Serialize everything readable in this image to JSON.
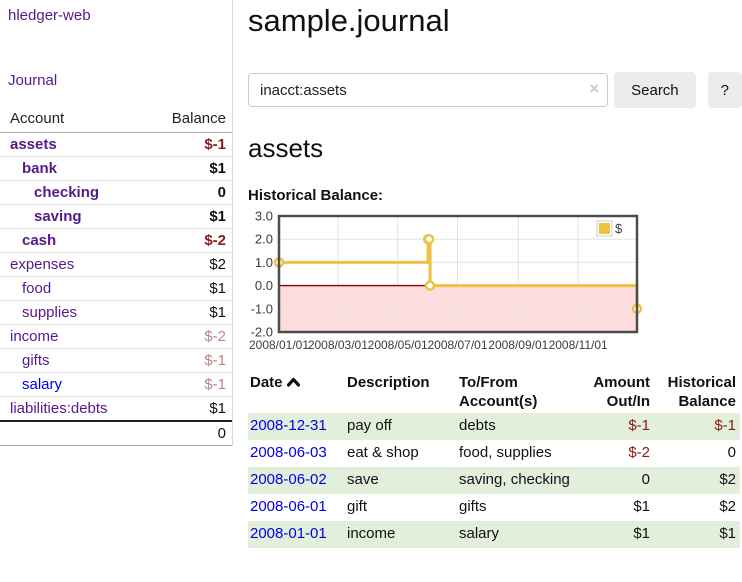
{
  "app": {
    "brand": "hledger-web"
  },
  "sidebar": {
    "journal_link": "Journal",
    "account_header": "Account",
    "balance_header": "Balance",
    "accounts": [
      {
        "name": "assets",
        "balance": "$-1",
        "indent": 1
      },
      {
        "name": "bank",
        "balance": "$1",
        "indent": 2
      },
      {
        "name": "checking",
        "balance": "0",
        "indent": 3
      },
      {
        "name": "saving",
        "balance": "$1",
        "indent": 3
      },
      {
        "name": "cash",
        "balance": "$-2",
        "indent": 2
      },
      {
        "name": "expenses",
        "balance": "$2",
        "indent": 1
      },
      {
        "name": "food",
        "balance": "$1",
        "indent": 2
      },
      {
        "name": "supplies",
        "balance": "$1",
        "indent": 2
      },
      {
        "name": "income",
        "balance": "$-2",
        "indent": 1
      },
      {
        "name": "gifts",
        "balance": "$-1",
        "indent": 2
      },
      {
        "name": "salary",
        "balance": "$-1",
        "indent": 2
      },
      {
        "name": "liabilities:debts",
        "balance": "$1",
        "indent": 1
      }
    ],
    "total": "0"
  },
  "header": {
    "title": "sample.journal"
  },
  "search": {
    "value": "inacct:assets",
    "clear_icon": "×",
    "button_label": "Search",
    "help_label": "?"
  },
  "account_page": {
    "heading": "assets",
    "chart_label": "Historical Balance:"
  },
  "chart_data": {
    "type": "line",
    "step": true,
    "title": "Historical Balance",
    "series": [
      {
        "name": "$",
        "color": "#edc240",
        "points": [
          [
            "2008-01-01",
            1
          ],
          [
            "2008-06-01",
            2
          ],
          [
            "2008-06-02",
            2
          ],
          [
            "2008-06-03",
            0
          ],
          [
            "2008-12-31",
            -1
          ]
        ]
      }
    ],
    "xrange": [
      "2008-01-01",
      "2008-12-31"
    ],
    "ylim": [
      -2,
      3
    ],
    "yticks": [
      3.0,
      2.0,
      1.0,
      0.0,
      -1.0,
      -2.0
    ],
    "xticks": [
      "2008/01/01",
      "2008/03/01",
      "2008/05/01",
      "2008/07/01",
      "2008/09/01",
      "2008/11/01"
    ],
    "grid": true,
    "legend_position": "top-right",
    "legend_label": "$",
    "negative_fill": "#fcdcdc",
    "zero_line_color": "#8b0000",
    "border_color": "#4d4d4d",
    "grid_color": "#e3e3e3"
  },
  "register": {
    "columns": [
      "Date",
      "Description",
      "To/From Account(s)",
      "Amount Out/In",
      "Historical Balance"
    ],
    "sort_icon": "chevron-up",
    "rows": [
      {
        "date": "2008-12-31",
        "description": "pay off",
        "accounts": "debts",
        "amount": "$-1",
        "balance": "$-1"
      },
      {
        "date": "2008-06-03",
        "description": "eat & shop",
        "accounts": "food, supplies",
        "amount": "$-2",
        "balance": "0"
      },
      {
        "date": "2008-06-02",
        "description": "save",
        "accounts": "saving, checking",
        "amount": "0",
        "balance": "$2"
      },
      {
        "date": "2008-06-01",
        "description": "gift",
        "accounts": "gifts",
        "amount": "$1",
        "balance": "$2"
      },
      {
        "date": "2008-01-01",
        "description": "income",
        "accounts": "salary",
        "amount": "$1",
        "balance": "$1"
      }
    ]
  },
  "colors": {
    "link_purple": "#551a8b",
    "link_blue": "#0000e6",
    "negative_strong": "#8b1a1a",
    "negative_muted": "#bd8484",
    "row_green": "#e2efda",
    "chart_line": "#edc240",
    "chart_negative_fill": "#fcdcdc",
    "chart_zero_line": "#8b0000",
    "button_bg": "#ececec"
  }
}
